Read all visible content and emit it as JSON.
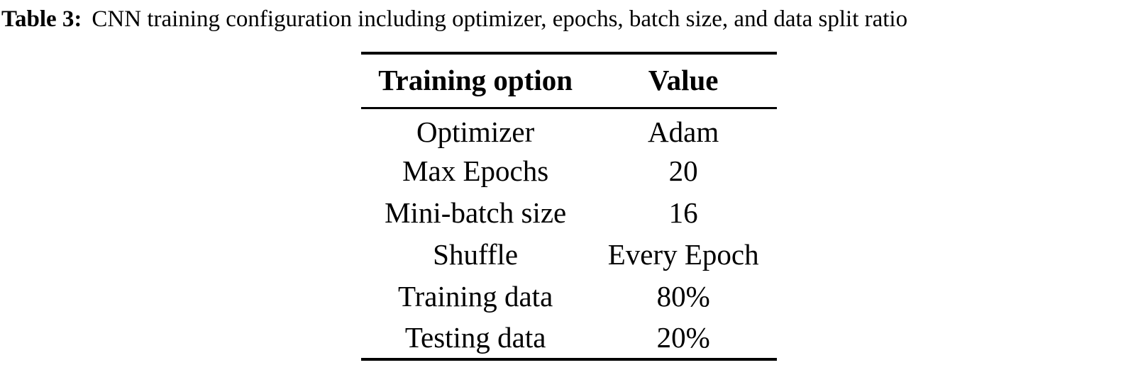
{
  "caption": {
    "label": "Table 3:",
    "text": "CNN training configuration including optimizer, epochs, batch size, and data split ratio"
  },
  "table": {
    "columns": [
      "Training option",
      "Value"
    ],
    "rows": [
      {
        "option": "Optimizer",
        "value": "Adam"
      },
      {
        "option": "Max Epochs",
        "value": "20"
      },
      {
        "option": "Mini-batch size",
        "value": "16"
      },
      {
        "option": "Shuffle",
        "value": "Every Epoch"
      },
      {
        "option": "Training data",
        "value": "80%"
      },
      {
        "option": "Testing data",
        "value": "20%"
      }
    ]
  },
  "colors": {
    "text": "#000000",
    "background": "#ffffff",
    "rule": "#000000"
  }
}
